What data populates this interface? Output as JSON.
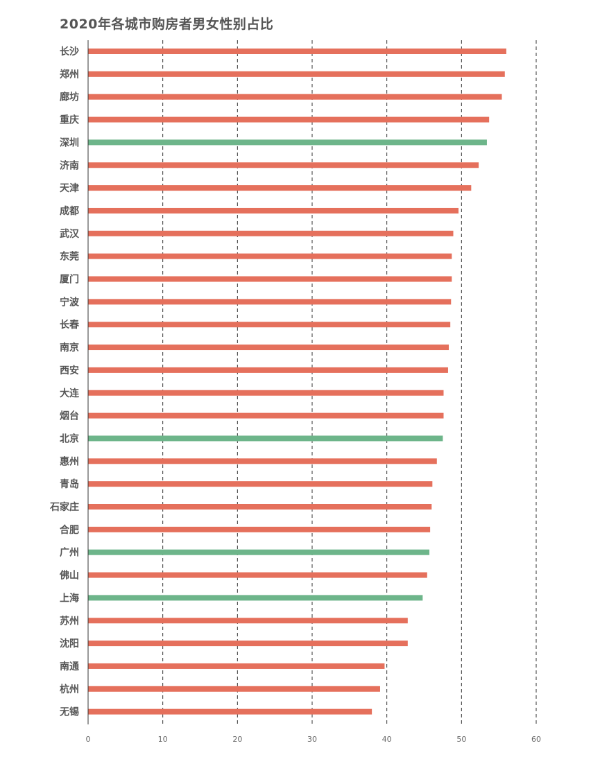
{
  "chart_data": {
    "type": "bar",
    "orientation": "horizontal",
    "title": "2020年各城市购房者男女性别占比",
    "xlabel": "",
    "ylabel": "",
    "xlim": [
      0,
      60
    ],
    "xticks": [
      "0",
      "10",
      "20",
      "30",
      "40",
      "50",
      "60"
    ],
    "grid": "vertical-dashed",
    "colors": {
      "default": "#e5705c",
      "highlight": "#6db58a"
    },
    "categories": [
      "长沙",
      "郑州",
      "廊坊",
      "重庆",
      "深圳",
      "济南",
      "天津",
      "成都",
      "武汉",
      "东莞",
      "厦门",
      "宁波",
      "长春",
      "南京",
      "西安",
      "大连",
      "烟台",
      "北京",
      "惠州",
      "青岛",
      "石家庄",
      "合肥",
      "广州",
      "佛山",
      "上海",
      "苏州",
      "沈阳",
      "南通",
      "杭州",
      "无锡"
    ],
    "values": [
      56.0,
      55.8,
      55.4,
      53.7,
      53.4,
      52.3,
      51.3,
      49.6,
      48.9,
      48.7,
      48.7,
      48.6,
      48.5,
      48.3,
      48.2,
      47.6,
      47.6,
      47.5,
      46.7,
      46.1,
      46.0,
      45.8,
      45.7,
      45.4,
      44.8,
      42.8,
      42.8,
      39.7,
      39.1,
      38.0
    ],
    "highlight": [
      false,
      false,
      false,
      false,
      true,
      false,
      false,
      false,
      false,
      false,
      false,
      false,
      false,
      false,
      false,
      false,
      false,
      true,
      false,
      false,
      false,
      false,
      true,
      false,
      true,
      false,
      false,
      false,
      false,
      false
    ]
  }
}
